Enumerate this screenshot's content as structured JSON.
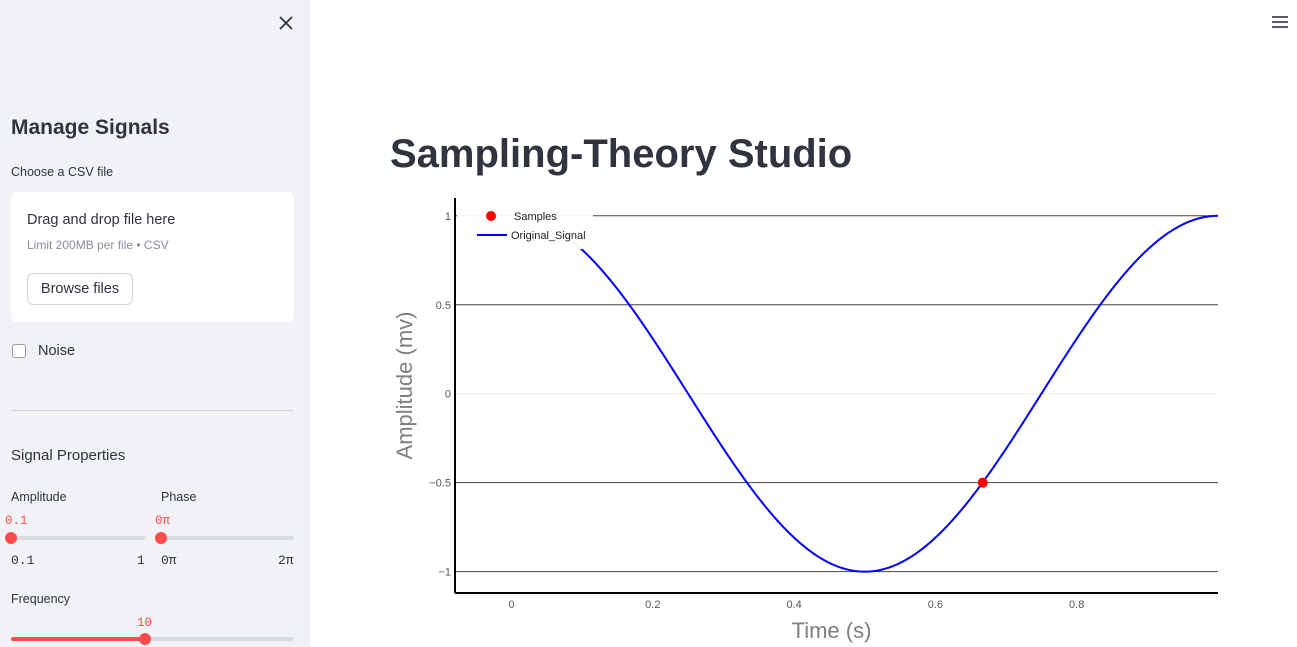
{
  "sidebar": {
    "title": "Manage Signals",
    "upload_label": "Choose a CSV file",
    "dropzone_text": "Drag and drop file here",
    "dropzone_limit": "Limit 200MB per file • CSV",
    "browse_label": "Browse files",
    "noise_label": "Noise",
    "noise_checked": false,
    "section_title": "Signal Properties",
    "amplitude": {
      "label": "Amplitude",
      "value": "0.1",
      "min": "0.1",
      "max": "1"
    },
    "phase": {
      "label": "Phase",
      "value": "0π",
      "min": "0π",
      "max": "2π"
    },
    "frequency": {
      "label": "Frequency",
      "value": "10"
    }
  },
  "main": {
    "title": "Sampling-Theory Studio"
  },
  "chart_data": {
    "type": "line",
    "xlabel": "Time (s)",
    "ylabel": "Amplitude (mv)",
    "xlim": [
      -0.08,
      1.0
    ],
    "ylim": [
      -1.12,
      1.1
    ],
    "x_ticks": [
      0,
      0.2,
      0.4,
      0.6,
      0.8
    ],
    "x_tick_labels": [
      "0",
      "0.2",
      "0.4",
      "0.6",
      "0.8"
    ],
    "y_ticks": [
      -1,
      -0.5,
      0,
      0.5,
      1
    ],
    "y_tick_labels": [
      "−1",
      "−0.5",
      "0",
      "0.5",
      "1"
    ],
    "legend_position": "top-left",
    "series": [
      {
        "name": "Samples",
        "kind": "scatter",
        "color": "#ff0000",
        "x": [
          0.667
        ],
        "y": [
          -0.5
        ]
      },
      {
        "name": "Original_Signal",
        "kind": "line",
        "color": "#0000ff",
        "function": "cos(2*pi*x)",
        "x_range": [
          0.08,
          1.0
        ]
      }
    ]
  }
}
